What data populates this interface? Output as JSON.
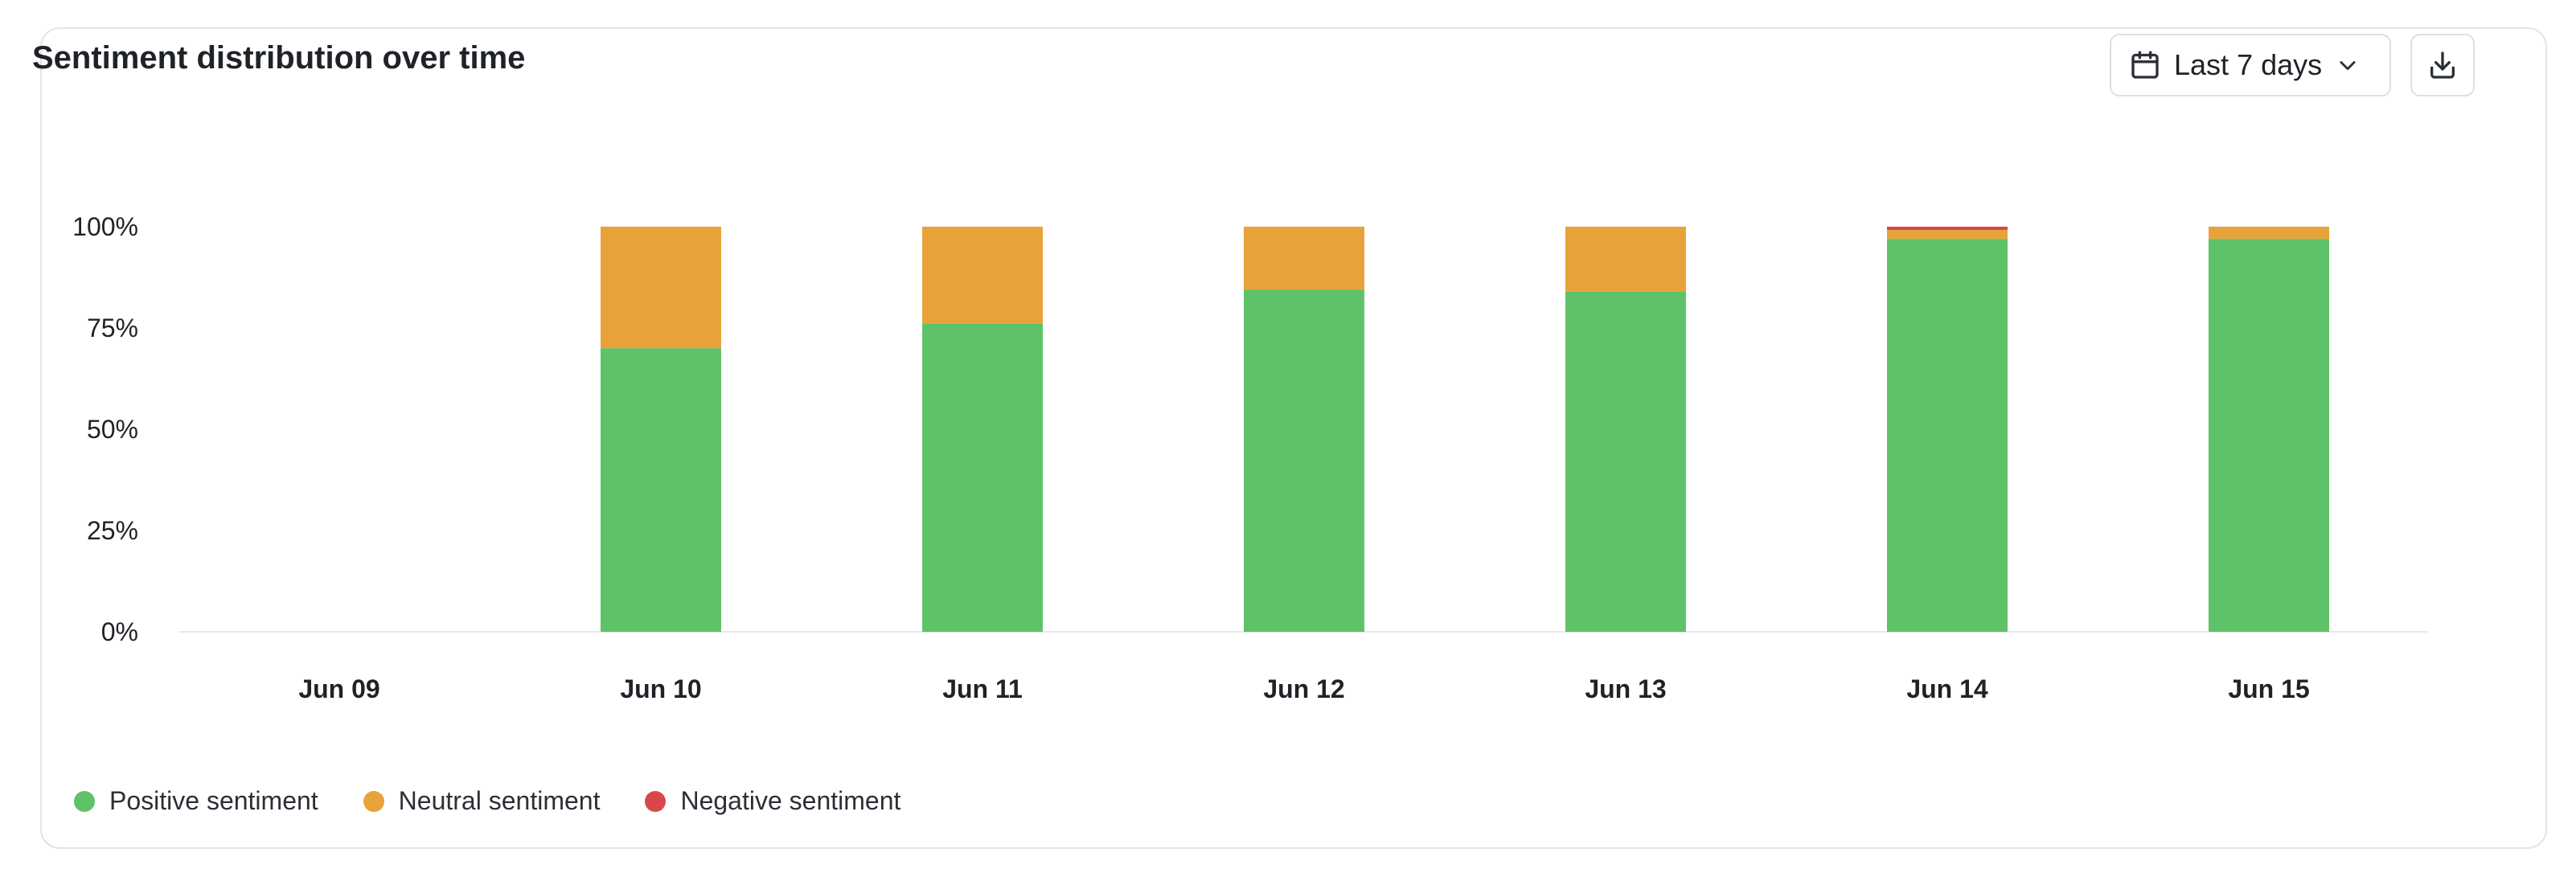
{
  "card": {
    "title": "Sentiment distribution over time"
  },
  "controls": {
    "range_label": "Last 7 days",
    "calendar_icon": "calendar-icon",
    "chevron_icon": "chevron-down-icon",
    "download_icon": "download-icon"
  },
  "colors": {
    "positive": "#5ec368",
    "neutral": "#e8a23a",
    "negative": "#d9474b",
    "axis_text": "#1f2328",
    "baseline": "#e6e8eb"
  },
  "legend": [
    {
      "label": "Positive sentiment",
      "color": "#5ec368"
    },
    {
      "label": "Neutral sentiment",
      "color": "#e8a23a"
    },
    {
      "label": "Negative sentiment",
      "color": "#d9474b"
    }
  ],
  "chart_data": {
    "type": "bar",
    "stacked": true,
    "categories": [
      "Jun 09",
      "Jun 10",
      "Jun 11",
      "Jun 12",
      "Jun 13",
      "Jun 14",
      "Jun 15"
    ],
    "series": [
      {
        "name": "Positive sentiment",
        "values": [
          0,
          70,
          76,
          84.5,
          84,
          97,
          97
        ]
      },
      {
        "name": "Neutral sentiment",
        "values": [
          0,
          30,
          24,
          15.5,
          16,
          2.2,
          3
        ]
      },
      {
        "name": "Negative sentiment",
        "values": [
          0,
          0,
          0,
          0,
          0,
          0.8,
          0
        ]
      }
    ],
    "y_ticks": [
      "0%",
      "25%",
      "50%",
      "75%",
      "100%"
    ],
    "ylim": [
      0,
      100
    ],
    "grid": false,
    "legend_position": "bottom-left"
  }
}
